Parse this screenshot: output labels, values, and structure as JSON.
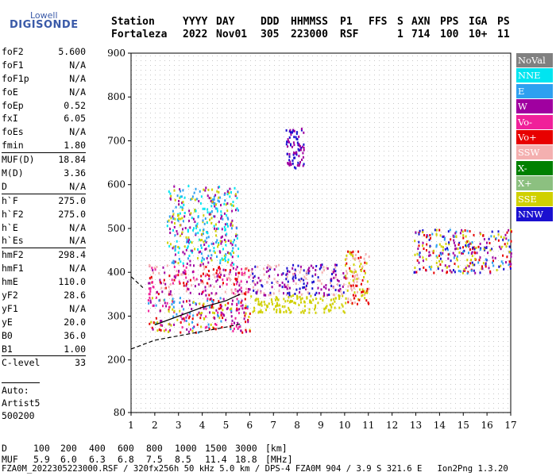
{
  "logo": {
    "line1": "Lowell",
    "line2": "DIGISONDE"
  },
  "header": {
    "labels": [
      "Station",
      "YYYY",
      "DAY",
      "DDD",
      "HHMMSS",
      "P1",
      "FFS",
      "S",
      "AXN",
      "PPS",
      "IGA",
      "PS"
    ],
    "values": [
      "Fortaleza",
      "2022",
      "Nov01",
      "305",
      "223000",
      "RSF",
      "",
      "1",
      "714",
      "100",
      "10+",
      "11"
    ]
  },
  "params": [
    {
      "label": "foF2",
      "value": "5.600"
    },
    {
      "label": "foF1",
      "value": "N/A"
    },
    {
      "label": "foF1p",
      "value": "N/A"
    },
    {
      "label": "foE",
      "value": "N/A"
    },
    {
      "label": "foEp",
      "value": "0.52"
    },
    {
      "label": "fxI",
      "value": "6.05"
    },
    {
      "label": "foEs",
      "value": "N/A"
    },
    {
      "label": "fmin",
      "value": "1.80"
    },
    {
      "label": "MUF(D)",
      "value": "18.84",
      "sep": true
    },
    {
      "label": "M(D)",
      "value": "3.36"
    },
    {
      "label": "D",
      "value": "N/A"
    },
    {
      "label": "h`F",
      "value": "275.0",
      "sep": true
    },
    {
      "label": "h`F2",
      "value": "275.0"
    },
    {
      "label": "h`E",
      "value": "N/A"
    },
    {
      "label": "h`Es",
      "value": "N/A"
    },
    {
      "label": "hmF2",
      "value": "298.4",
      "sep": true
    },
    {
      "label": "hmF1",
      "value": "N/A"
    },
    {
      "label": "hmE",
      "value": "110.0"
    },
    {
      "label": "yF2",
      "value": "28.6"
    },
    {
      "label": "yF1",
      "value": "N/A"
    },
    {
      "label": "yE",
      "value": "20.0"
    },
    {
      "label": "B0",
      "value": "36.0"
    },
    {
      "label": "B1",
      "value": "1.00"
    },
    {
      "label": "C-level",
      "value": "33",
      "sep": true
    }
  ],
  "notes": [
    "Auto:",
    "Artist5",
    "500200"
  ],
  "legend": [
    {
      "label": "NoVal",
      "color": "#808080"
    },
    {
      "label": "NNE",
      "color": "#00e5f0"
    },
    {
      "label": "E",
      "color": "#2ea0f0"
    },
    {
      "label": "W",
      "color": "#a000a0"
    },
    {
      "label": "Vo-",
      "color": "#f0209a"
    },
    {
      "label": "Vo+",
      "color": "#e80000"
    },
    {
      "label": "SSW",
      "color": "#f4b0b0"
    },
    {
      "label": "X-",
      "color": "#008000"
    },
    {
      "label": "X+",
      "color": "#8cc080"
    },
    {
      "label": "SSE",
      "color": "#d0d000"
    },
    {
      "label": "NNW",
      "color": "#1a10d0"
    }
  ],
  "bottom": {
    "d_label": "D",
    "d_values": [
      "100",
      "200",
      "400",
      "600",
      "800",
      "1000",
      "1500",
      "3000",
      "[km]"
    ],
    "muf_label": "MUF",
    "muf_values": [
      "5.9",
      "6.0",
      "6.3",
      "6.8",
      "7.5",
      "8.5",
      "11.4",
      "18.8",
      "[MHz]"
    ]
  },
  "footer": "FZA0M_2022305223000.RSF / 320fx256h 50 kHz 5.0 km / DPS-4 FZA0M 904 / 3.9 S 321.6 E   Ion2Png 1.3.20",
  "chart_data": {
    "type": "scatter",
    "xlim": [
      1,
      17
    ],
    "ylim": [
      80,
      900
    ],
    "x_ticks": [
      1,
      2,
      3,
      4,
      5,
      6,
      7,
      8,
      9,
      10,
      11,
      12,
      13,
      14,
      15,
      16,
      17
    ],
    "y_ticks": [
      80,
      200,
      300,
      400,
      500,
      600,
      700,
      800,
      900
    ],
    "grid": true,
    "legend_position": "right",
    "echo_clusters": [
      {
        "x": [
          1.7,
          6.0
        ],
        "y": [
          265,
          345
        ],
        "colors": [
          "Vo+",
          "Vo-",
          "SSE",
          "W",
          "E"
        ]
      },
      {
        "x": [
          1.7,
          6.0
        ],
        "y": [
          350,
          420
        ],
        "colors": [
          "Vo+",
          "W",
          "Vo-",
          "SSW"
        ]
      },
      {
        "x": [
          2.5,
          5.5
        ],
        "y": [
          420,
          600
        ],
        "colors": [
          "NNE",
          "E",
          "SSE",
          "W"
        ]
      },
      {
        "x": [
          6.0,
          10.0
        ],
        "y": [
          310,
          350
        ],
        "colors": [
          "SSE"
        ]
      },
      {
        "x": [
          6.0,
          10.0
        ],
        "y": [
          350,
          420
        ],
        "colors": [
          "SSW",
          "NNW",
          "W"
        ]
      },
      {
        "x": [
          7.5,
          8.3
        ],
        "y": [
          640,
          730
        ],
        "colors": [
          "NNW",
          "W"
        ]
      },
      {
        "x": [
          10.0,
          11.0
        ],
        "y": [
          330,
          450
        ],
        "colors": [
          "SSW",
          "SSE",
          "Vo+"
        ]
      },
      {
        "x": [
          12.9,
          17.0
        ],
        "y": [
          400,
          500
        ],
        "colors": [
          "NNW",
          "E",
          "SSE",
          "W",
          "Vo+"
        ]
      }
    ],
    "trace_lines": [
      {
        "x": [
          2.0,
          3.0,
          4.0,
          5.0,
          5.6
        ],
        "y": [
          280,
          300,
          320,
          335,
          350
        ]
      },
      {
        "x": [
          1.0,
          1.5,
          2.0,
          3.0,
          4.0,
          5.0,
          5.6
        ],
        "y": [
          225,
          235,
          245,
          255,
          265,
          275,
          282
        ]
      },
      {
        "x": [
          1.0,
          1.2,
          1.5
        ],
        "y": [
          390,
          380,
          365
        ]
      }
    ]
  }
}
